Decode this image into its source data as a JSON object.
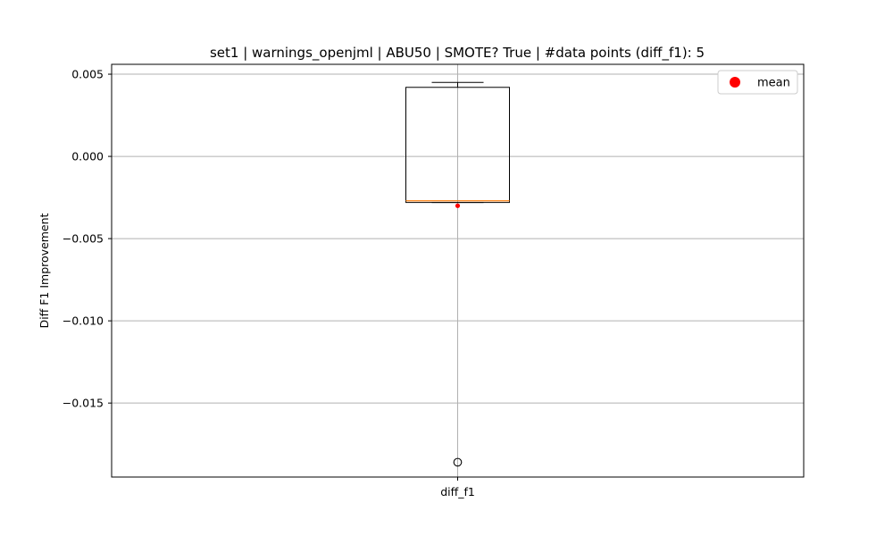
{
  "chart_data": {
    "type": "box",
    "title": "set1 | warnings_openjml | ABU50 | SMOTE? True | #data points (diff_f1): 5",
    "xlabel": "",
    "ylabel": "Diff F1 Improvement",
    "categories": [
      "diff_f1"
    ],
    "ylim": [
      -0.0195,
      0.0056
    ],
    "yticks": [
      0.005,
      0.0,
      -0.005,
      -0.01,
      -0.015
    ],
    "ytick_labels": [
      "0.005",
      "0.000",
      "−0.005",
      "−0.010",
      "−0.015"
    ],
    "grid": true,
    "legend": {
      "placement": "top-right",
      "entries": [
        "mean"
      ]
    },
    "boxes": [
      {
        "name": "diff_f1",
        "whisker_low": -0.0028,
        "q1": -0.0028,
        "median": -0.0027,
        "q3": 0.0042,
        "whisker_high": 0.0045,
        "mean": -0.003,
        "outliers": [
          -0.0186
        ]
      }
    ],
    "colors": {
      "box": "#000000",
      "median": "#ff7f0e",
      "mean": "#ff0000",
      "grid": "#b0b0b0"
    }
  }
}
